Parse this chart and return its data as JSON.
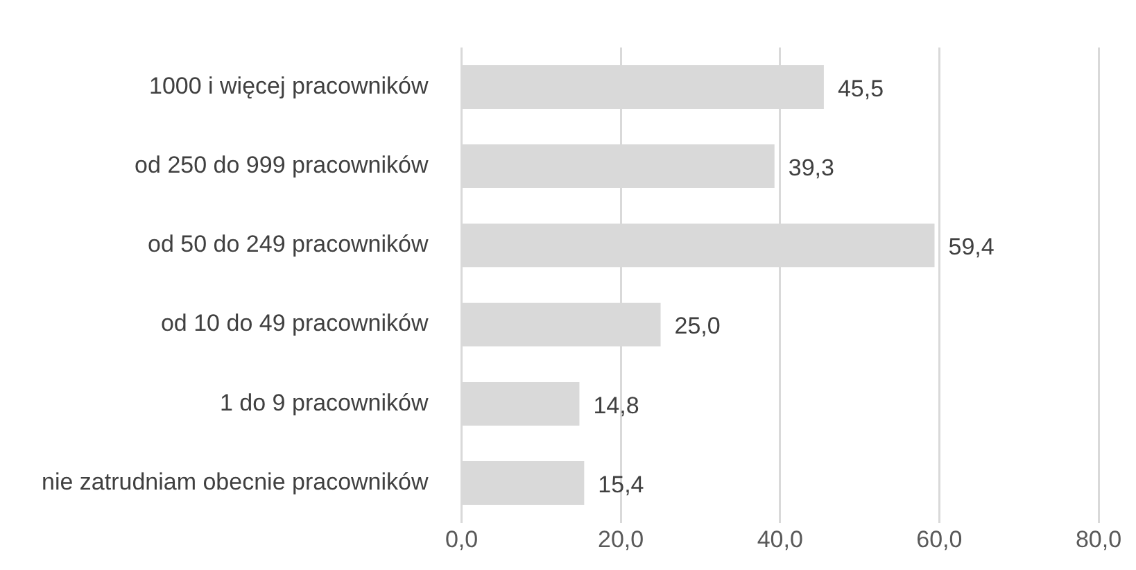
{
  "chart_data": {
    "type": "bar",
    "orientation": "horizontal",
    "categories": [
      "1000 i więcej pracowników",
      "od 250 do 999 pracowników",
      "od 50 do 249 pracowników",
      "od 10 do 49 pracowników",
      "1 do 9 pracowników",
      "nie zatrudniam obecnie pracowników"
    ],
    "values": [
      45.5,
      39.3,
      59.4,
      25.0,
      14.8,
      15.4
    ],
    "value_labels": [
      "45,5",
      "39,3",
      "59,4",
      "25,0",
      "14,8",
      "15,4"
    ],
    "color": "#d9d9d9",
    "xlim": [
      0,
      80
    ],
    "xticks": [
      {
        "value": 0,
        "label": "0,0"
      },
      {
        "value": 20,
        "label": "20,0"
      },
      {
        "value": 40,
        "label": "40,0"
      },
      {
        "value": 60,
        "label": "60,0"
      },
      {
        "value": 80,
        "label": "80,0"
      }
    ],
    "grid": "x"
  }
}
